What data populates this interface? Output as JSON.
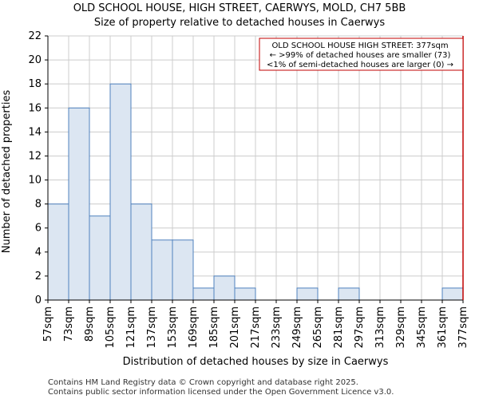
{
  "chart_data": {
    "type": "bar",
    "title": "OLD SCHOOL HOUSE, HIGH STREET, CAERWYS, MOLD, CH7 5BB",
    "subtitle": "Size of property relative to detached houses in Caerwys",
    "xlabel": "Distribution of detached houses by size in Caerwys",
    "ylabel": "Number of detached properties",
    "bin_edges": [
      57,
      73,
      89,
      105,
      121,
      137,
      153,
      169,
      185,
      201,
      217,
      233,
      249,
      265,
      281,
      297,
      313,
      329,
      345,
      361,
      377
    ],
    "x_tick_labels": [
      "57sqm",
      "73sqm",
      "89sqm",
      "105sqm",
      "121sqm",
      "137sqm",
      "153sqm",
      "169sqm",
      "185sqm",
      "201sqm",
      "217sqm",
      "233sqm",
      "249sqm",
      "265sqm",
      "281sqm",
      "297sqm",
      "313sqm",
      "329sqm",
      "345sqm",
      "361sqm",
      "377sqm"
    ],
    "values": [
      8,
      16,
      7,
      18,
      8,
      5,
      5,
      1,
      2,
      1,
      0,
      0,
      1,
      0,
      1,
      0,
      0,
      0,
      0,
      1
    ],
    "ylim": [
      0,
      22
    ],
    "y_ticks": [
      0,
      2,
      4,
      6,
      8,
      10,
      12,
      14,
      16,
      18,
      20,
      22
    ],
    "grid": true,
    "bar_fill": "#dce6f2",
    "bar_edge": "#4f81bd",
    "marker_x": 377,
    "marker_color": "#c00000",
    "annotation_lines": [
      "OLD SCHOOL HOUSE HIGH STREET: 377sqm",
      "← >99% of detached houses are smaller (73)",
      "<1% of semi-detached houses are larger (0) →"
    ]
  },
  "footer": {
    "line1": "Contains HM Land Registry data © Crown copyright and database right 2025.",
    "line2": "Contains public sector information licensed under the Open Government Licence v3.0."
  }
}
